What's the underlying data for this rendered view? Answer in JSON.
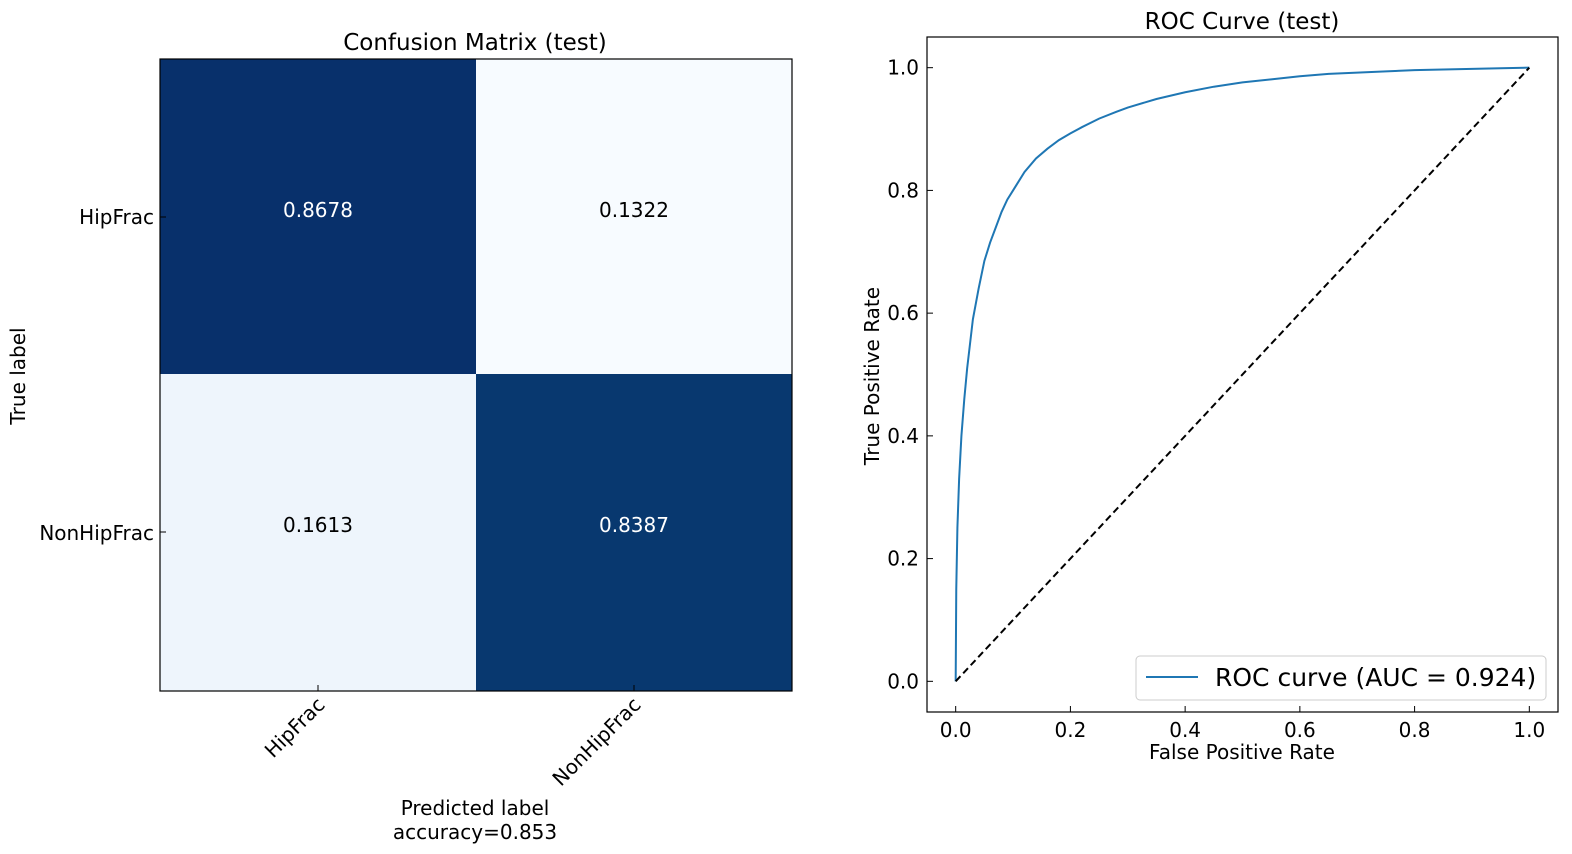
{
  "chart_data": [
    {
      "type": "heatmap",
      "title": "Confusion Matrix (test)",
      "xlabel": "Predicted label",
      "xlabel_note": "accuracy=0.853",
      "ylabel": "True label",
      "x_categories": [
        "HipFrac",
        "NonHipFrac"
      ],
      "y_categories": [
        "HipFrac",
        "NonHipFrac"
      ],
      "cell_labels": [
        [
          "0.8678",
          "0.1322"
        ],
        [
          "0.1613",
          "0.8387"
        ]
      ],
      "colormap": "Blues",
      "colors": {
        "high": "#08306b",
        "high_alt": "#08386f",
        "low": "#f7fbff",
        "low_alt": "#eef5fc",
        "text_on_dark": "#ffffff",
        "text_on_light": "#000000"
      }
    },
    {
      "type": "line",
      "title": "ROC Curve (test)",
      "xlabel": "False Positive Rate",
      "ylabel": "True Positive Rate",
      "xlim": [
        -0.05,
        1.05
      ],
      "ylim": [
        -0.05,
        1.05
      ],
      "xticks": [
        "0.0",
        "0.2",
        "0.4",
        "0.6",
        "0.8",
        "1.0"
      ],
      "yticks": [
        "0.0",
        "0.2",
        "0.4",
        "0.6",
        "0.8",
        "1.0"
      ],
      "legend_position": "lower-right",
      "grid": false,
      "series": [
        {
          "name": "ROC curve (AUC = 0.924)",
          "color": "#1f77b4",
          "style": "solid",
          "x": [
            0.0,
            0.001,
            0.003,
            0.006,
            0.01,
            0.015,
            0.02,
            0.025,
            0.03,
            0.04,
            0.05,
            0.06,
            0.07,
            0.08,
            0.09,
            0.1,
            0.12,
            0.14,
            0.16,
            0.18,
            0.2,
            0.22,
            0.25,
            0.28,
            0.3,
            0.35,
            0.4,
            0.45,
            0.5,
            0.55,
            0.6,
            0.65,
            0.7,
            0.75,
            0.8,
            0.85,
            0.9,
            0.95,
            1.0
          ],
          "y": [
            0.0,
            0.15,
            0.25,
            0.33,
            0.4,
            0.46,
            0.51,
            0.55,
            0.59,
            0.64,
            0.685,
            0.715,
            0.74,
            0.765,
            0.785,
            0.8,
            0.83,
            0.852,
            0.868,
            0.882,
            0.893,
            0.903,
            0.917,
            0.928,
            0.935,
            0.949,
            0.96,
            0.969,
            0.976,
            0.981,
            0.986,
            0.99,
            0.992,
            0.994,
            0.996,
            0.997,
            0.998,
            0.999,
            1.0
          ]
        },
        {
          "name": "",
          "color": "#000000",
          "style": "dashed",
          "x": [
            0.0,
            1.0
          ],
          "y": [
            0.0,
            1.0
          ]
        }
      ]
    }
  ]
}
